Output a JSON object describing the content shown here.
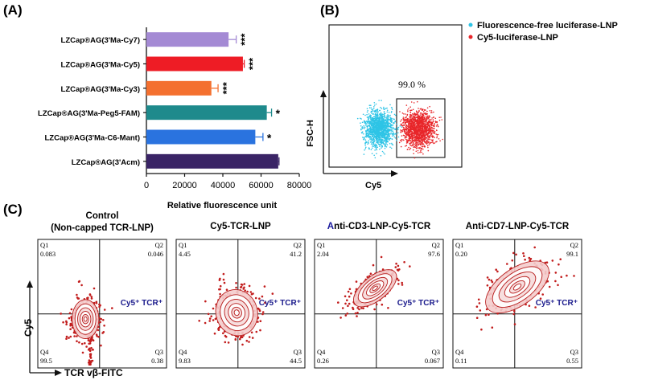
{
  "panels": {
    "a": "(A)",
    "b": "(B)",
    "c": "(C)"
  },
  "chart_data": [
    {
      "type": "bar",
      "orientation": "horizontal",
      "categories": [
        "LZCap®AG(3'Ma-Cy7)",
        "LZCap®AG(3'Ma-Cy5)",
        "LZCap®AG(3'Ma-Cy3)",
        "LZCap®AG(3'Ma-Peg5-FAM)",
        "LZCap®AG(3'Ma-C6-Mant)",
        "LZCap®AG(3'Acm)"
      ],
      "values": [
        43000,
        50500,
        34000,
        63000,
        57000,
        69000
      ],
      "errors": [
        4000,
        700,
        3500,
        2500,
        4000,
        400
      ],
      "significance": [
        "***",
        "***",
        "***",
        "*",
        "*",
        ""
      ],
      "colors": [
        "#a48ad4",
        "#ee1c25",
        "#f4702f",
        "#1e8a8c",
        "#2a73df",
        "#3a2466"
      ],
      "xlabel": "Relative fluorescence unit",
      "xlim": [
        0,
        80000
      ],
      "xticks": [
        "0",
        "20000",
        "40000",
        "60000",
        "80000"
      ]
    },
    {
      "type": "scatter",
      "xlabel": "Cy5",
      "ylabel": "FSC-H",
      "gate_label": "99.0 %",
      "legend": [
        {
          "name": "Fluorescence-free luciferase-LNP",
          "color": "#2ec4e6"
        },
        {
          "name": "Cy5-luciferase-LNP",
          "color": "#e8262a"
        }
      ],
      "legend_position": "top-right"
    },
    {
      "type": "scatter",
      "subtype": "quadrant-plots",
      "xlabel": "TCR vβ-FITC",
      "ylabel": "Cy5",
      "quadrant_tag": "Cy5⁺ TCR⁺",
      "plots": [
        {
          "title": "Control",
          "subtitle": "(Non-capped TCR-LNP)",
          "q1": "0.083",
          "q2": "0.046",
          "q3": "0.38",
          "q4": "99.5"
        },
        {
          "title": "Cy5-TCR-LNP",
          "subtitle": "",
          "q1": "4.45",
          "q2": "41.2",
          "q3": "44.5",
          "q4": "9.83"
        },
        {
          "title_accent": "A",
          "title": "nti-CD3-LNP-Cy5-TCR",
          "subtitle": "",
          "q1": "2.04",
          "q2": "97.6",
          "q3": "0.067",
          "q4": "0.26"
        },
        {
          "title": "Anti-CD7-LNP-Cy5-TCR",
          "subtitle": "",
          "q1": "0.20",
          "q2": "99.1",
          "q3": "0.55",
          "q4": "0.11"
        }
      ],
      "quadrant_names": {
        "q1": "Q1",
        "q2": "Q2",
        "q3": "Q3",
        "q4": "Q4"
      }
    }
  ]
}
